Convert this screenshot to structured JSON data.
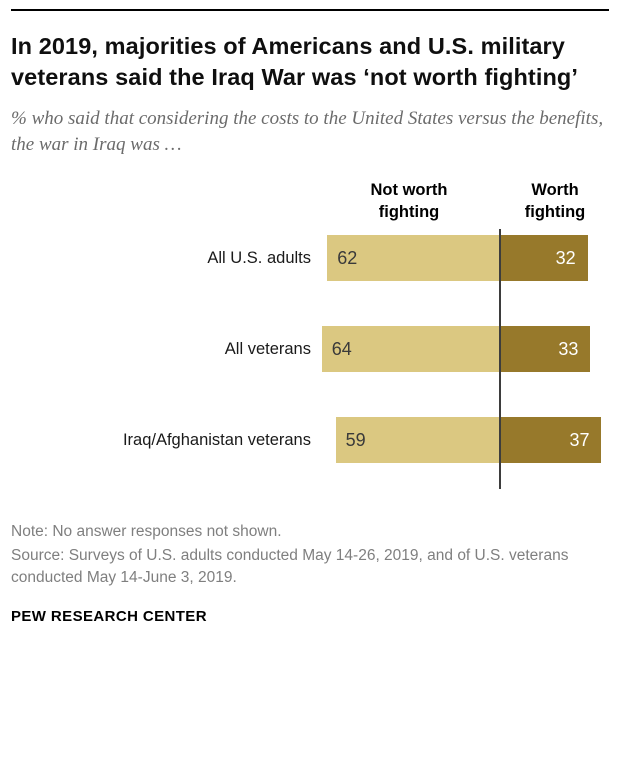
{
  "title": "In 2019, majorities of Americans and U.S. military veterans said the Iraq War was ‘not worth fighting’",
  "subtitle": "% who said that considering the costs to the United States versus the benefits, the war in Iraq was …",
  "chart_data": {
    "type": "bar",
    "orientation": "horizontal-diverging",
    "categories": [
      "All U.S. adults",
      "All veterans",
      "Iraq/Afghanistan veterans"
    ],
    "series": [
      {
        "name": "Not worth fighting",
        "values": [
          62,
          64,
          59
        ],
        "color": "#dbc881",
        "label_color": "#3a3a3a"
      },
      {
        "name": "Worth fighting",
        "values": [
          32,
          33,
          37
        ],
        "color": "#97792b",
        "label_color": "#ffffff"
      }
    ],
    "xlim": [
      0,
      65
    ],
    "grid": false,
    "legend_position": "column-headers",
    "value_labels": "inside"
  },
  "note": "Note: No answer responses not shown.",
  "source": "Source: Surveys of U.S. adults conducted May 14-26, 2019, and of U.S. veterans conducted May 14-June 3, 2019.",
  "footer": "PEW RESEARCH CENTER"
}
